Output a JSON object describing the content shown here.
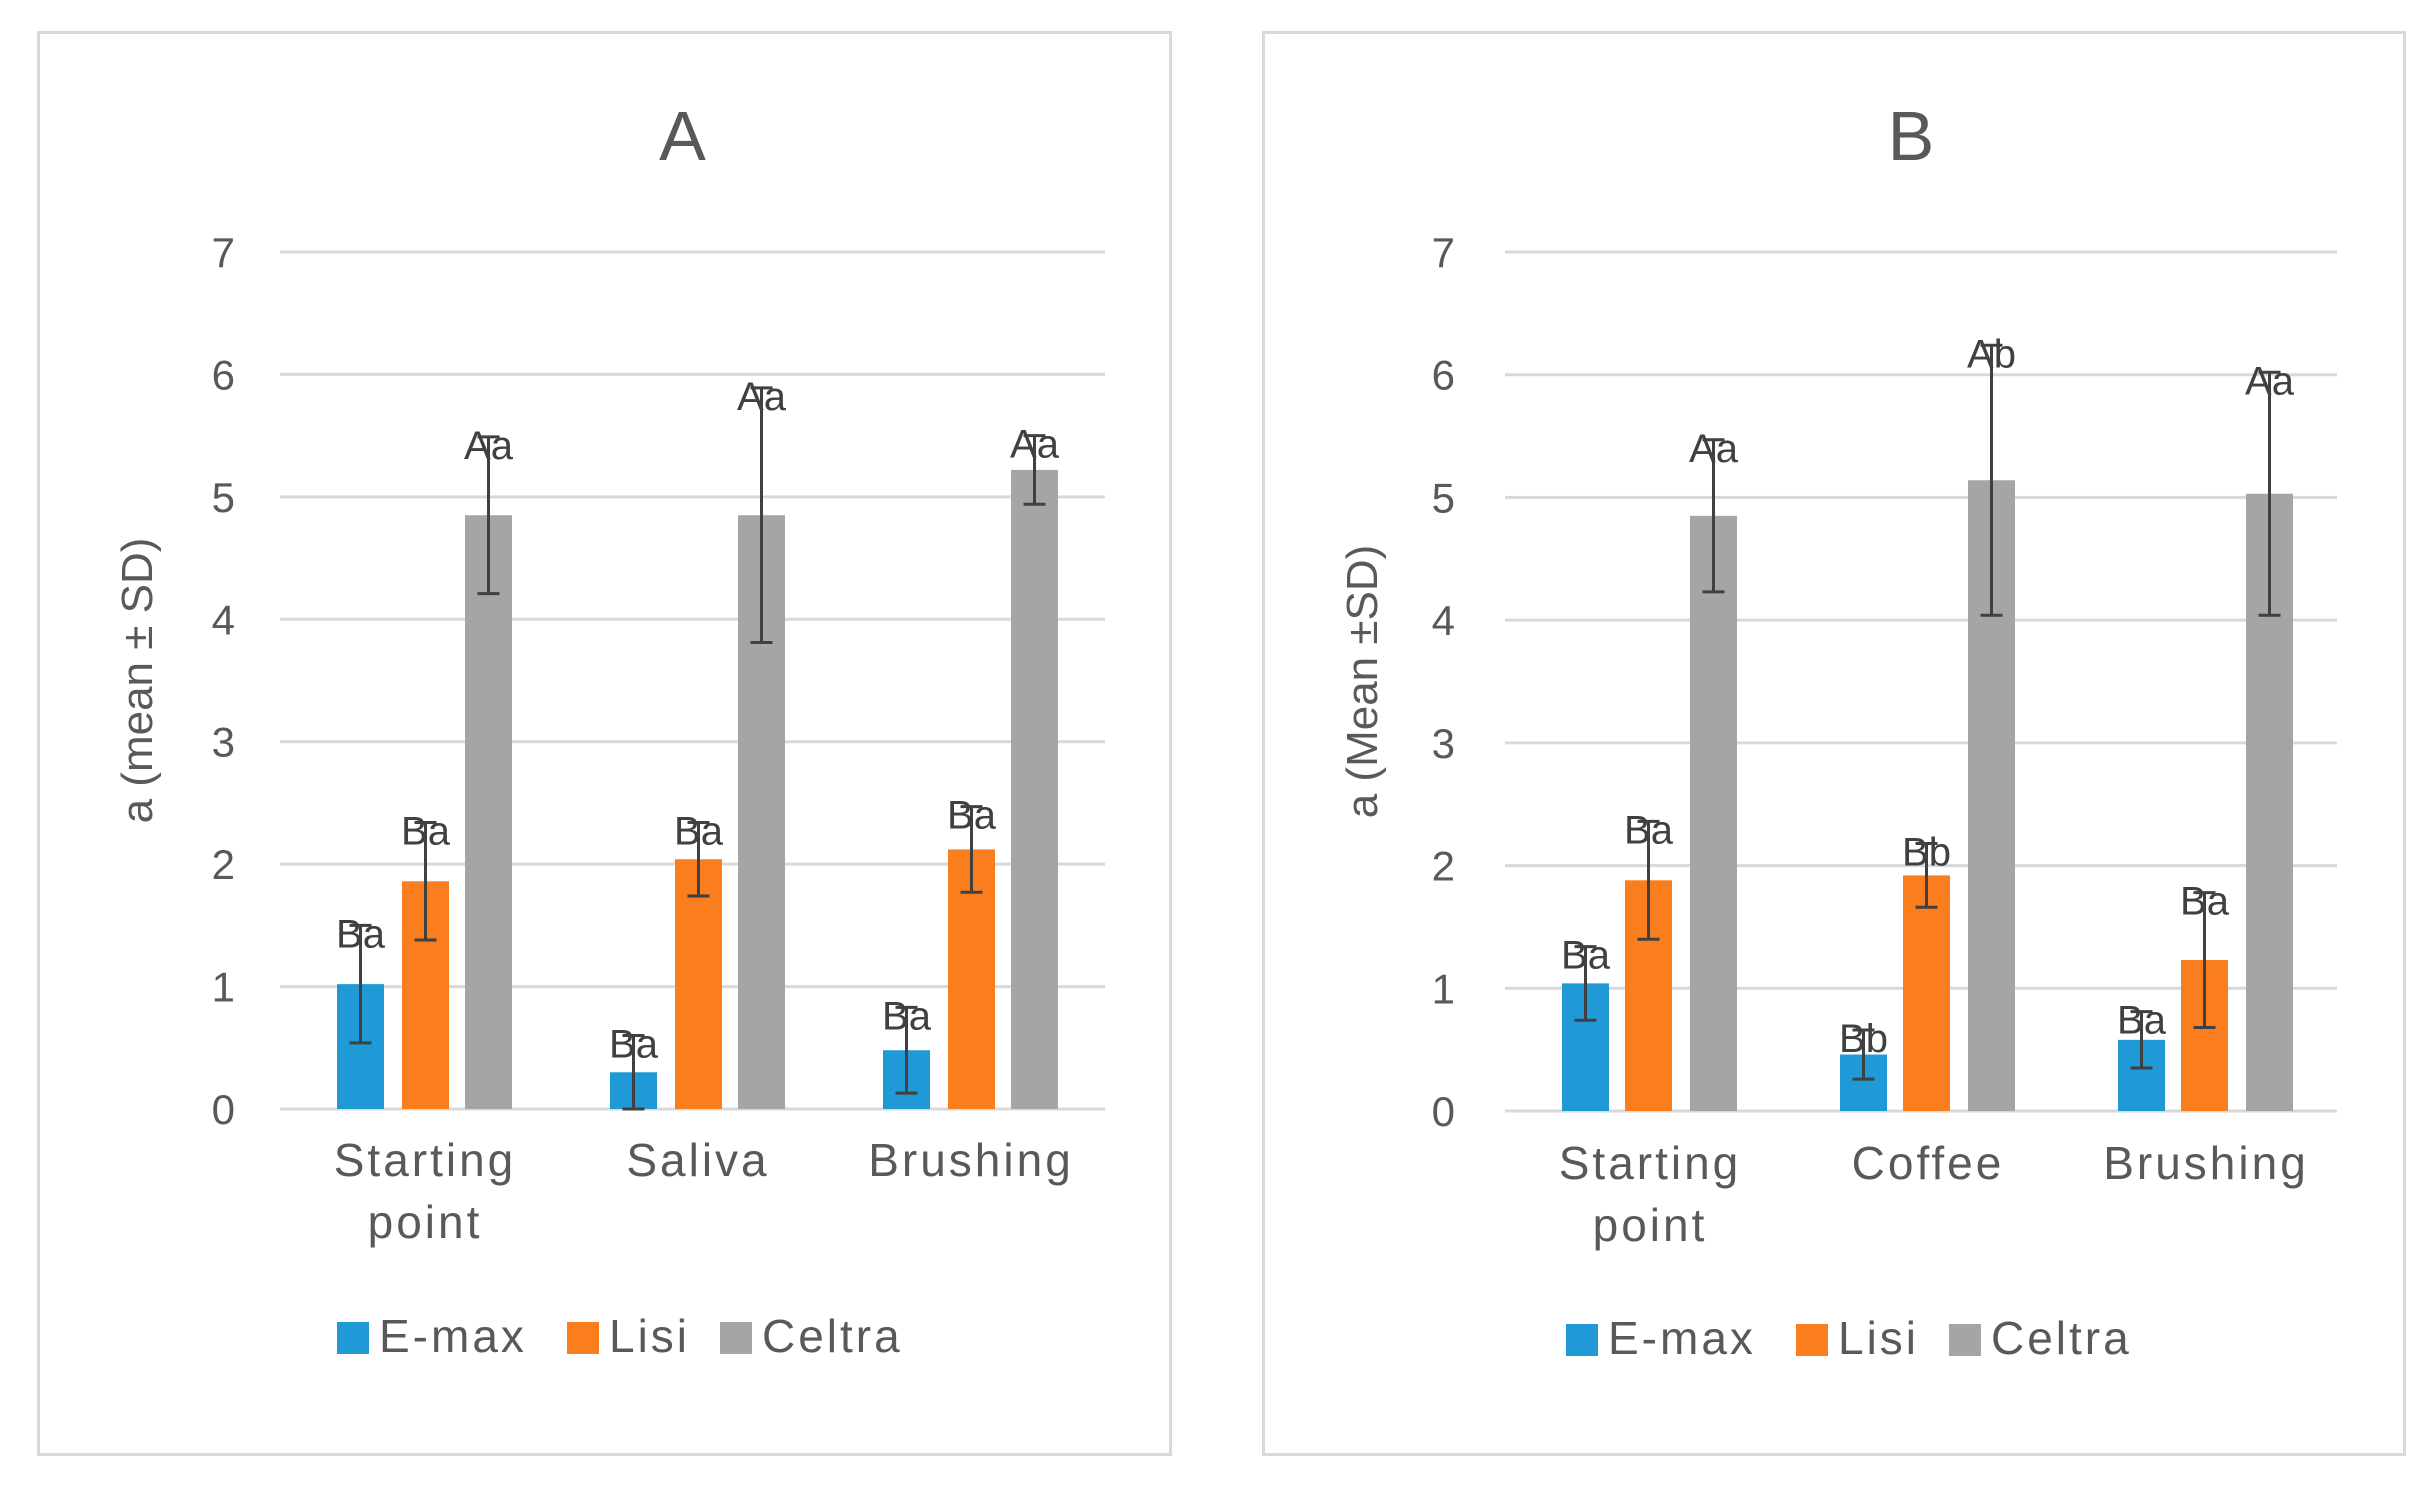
{
  "colors": {
    "E-max": "#1f9ad6",
    "Lisi": "#fa7d1e",
    "Celtra": "#a5a5a5",
    "grid": "#d9d9d9",
    "text": "#595959"
  },
  "chart_data": [
    {
      "type": "bar",
      "title": "A",
      "ylabel": "a (mean ± SD)",
      "xlabel": "",
      "ylim": [
        0,
        7
      ],
      "yticks": [
        "0",
        "1",
        "2",
        "3",
        "4",
        "5",
        "6",
        "7"
      ],
      "categories": [
        [
          "Starting",
          "point"
        ],
        [
          "Saliva"
        ],
        [
          "Brushing"
        ]
      ],
      "legend": "bottom",
      "series": [
        {
          "name": "E-max",
          "values": [
            1.02,
            0.3,
            0.48
          ],
          "errors": [
            0.48,
            0.3,
            0.35
          ],
          "labels": [
            "Ba",
            "Ba",
            "Ba"
          ]
        },
        {
          "name": "Lisi",
          "values": [
            1.86,
            2.04,
            2.12
          ],
          "errors": [
            0.48,
            0.3,
            0.35
          ],
          "labels": [
            "Ba",
            "Ba",
            "Ba"
          ]
        },
        {
          "name": "Celtra",
          "values": [
            4.85,
            4.85,
            5.22
          ],
          "errors": [
            0.64,
            1.04,
            0.28
          ],
          "labels": [
            "Aa",
            "Aa",
            "Aa"
          ]
        }
      ]
    },
    {
      "type": "bar",
      "title": "B",
      "ylabel": "a (Mean ±SD)",
      "xlabel": "",
      "ylim": [
        0,
        7
      ],
      "yticks": [
        "0",
        "1",
        "2",
        "3",
        "4",
        "5",
        "6",
        "7"
      ],
      "categories": [
        [
          "Starting",
          "point"
        ],
        [
          "Coffee"
        ],
        [
          "Brushing"
        ]
      ],
      "legend": "bottom",
      "series": [
        {
          "name": "E-max",
          "values": [
            1.04,
            0.46,
            0.58
          ],
          "errors": [
            0.3,
            0.2,
            0.23
          ],
          "labels": [
            "Ba",
            "Bb",
            "Ba"
          ]
        },
        {
          "name": "Lisi",
          "values": [
            1.88,
            1.92,
            1.23
          ],
          "errors": [
            0.48,
            0.26,
            0.55
          ],
          "labels": [
            "Ba",
            "Bb",
            "Ba"
          ]
        },
        {
          "name": "Celtra",
          "values": [
            4.85,
            5.14,
            5.03
          ],
          "errors": [
            0.62,
            1.1,
            0.99
          ],
          "labels": [
            "Aa",
            "Ab",
            "Aa"
          ]
        }
      ]
    }
  ]
}
